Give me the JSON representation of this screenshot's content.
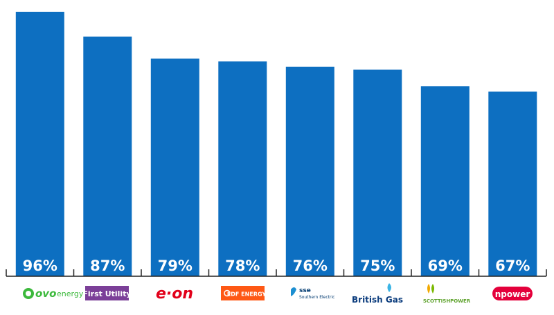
{
  "chart_data": {
    "type": "bar",
    "title": "",
    "xlabel": "",
    "ylabel": "",
    "ylim": [
      0,
      100
    ],
    "grid": false,
    "legend": "none",
    "bar_color": "#0d6fc1",
    "value_suffix": "%",
    "categories": [
      "ovo energy",
      "First Utility",
      "e.on",
      "EDF ENERGY",
      "sse Southern Electric",
      "British Gas",
      "SCOTTISHPOWER",
      "npower"
    ],
    "values": [
      96,
      87,
      79,
      78,
      76,
      75,
      69,
      67
    ],
    "value_labels": [
      "96%",
      "87%",
      "79%",
      "78%",
      "76%",
      "75%",
      "69%",
      "67%"
    ]
  },
  "logos": [
    {
      "icon": "ovo-logo",
      "color": "#3cb93c",
      "parts": [
        "ovo",
        "energy"
      ]
    },
    {
      "icon": "first-utility-logo",
      "color": "#7b3f98",
      "parts": [
        "First Utility"
      ]
    },
    {
      "icon": "eon-logo",
      "color": "#e2001a",
      "parts": [
        "e·on"
      ]
    },
    {
      "icon": "edf-energy-logo",
      "color": "#fe5815",
      "parts": [
        "EDF ENERGY"
      ]
    },
    {
      "icon": "sse-logo",
      "color": "#003a70",
      "parts": [
        "sse",
        "Southern Electric"
      ]
    },
    {
      "icon": "british-gas-logo",
      "color": "#0b3c7d",
      "parts": [
        "British Gas"
      ]
    },
    {
      "icon": "scottish-power-logo",
      "color": "#5fa32e",
      "parts": [
        "SCOTTISHPOWER"
      ]
    },
    {
      "icon": "npower-logo",
      "color": "#e4003b",
      "parts": [
        "npower"
      ]
    }
  ]
}
